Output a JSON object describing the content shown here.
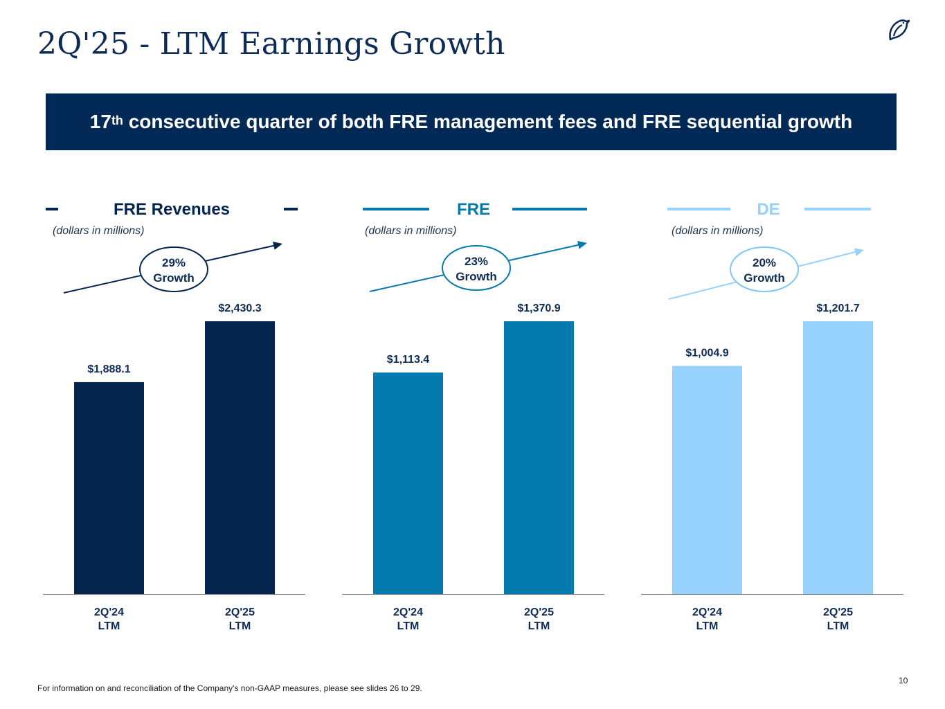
{
  "slide": {
    "title": "2Q'25 - LTM Earnings Growth",
    "banner": {
      "number": "17",
      "superscript": "th",
      "text": " consecutive quarter of both FRE management fees and FRE sequential growth"
    },
    "footnote": "For information on and reconciliation of the Company's non-GAAP measures, please see slides 26 to 29.",
    "page_number": "10"
  },
  "colors": {
    "navy": "#03254e",
    "mid_blue": "#0479ae",
    "light_blue": "#96d2fb",
    "banner_bg": "#032a56"
  },
  "chart_data": [
    {
      "type": "bar",
      "title": "FRE Revenues",
      "subtitle": "(dollars in millions)",
      "categories": [
        "2Q'24\nLTM",
        "2Q'25\nLTM"
      ],
      "values": [
        1888.1,
        2430.3
      ],
      "value_labels": [
        "$1,888.1",
        "$2,430.3"
      ],
      "growth_line1": "29%",
      "growth_line2": "Growth",
      "color": "#03254e",
      "ylim": [
        0,
        2430.3
      ],
      "xlabel": "",
      "ylabel": ""
    },
    {
      "type": "bar",
      "title": "FRE",
      "subtitle": "(dollars in millions)",
      "categories": [
        "2Q'24\nLTM",
        "2Q'25\nLTM"
      ],
      "values": [
        1113.4,
        1370.9
      ],
      "value_labels": [
        "$1,113.4",
        "$1,370.9"
      ],
      "growth_line1": "23%",
      "growth_line2": "Growth",
      "color": "#0479ae",
      "ylim": [
        0,
        1370.9
      ],
      "xlabel": "",
      "ylabel": ""
    },
    {
      "type": "bar",
      "title": "DE",
      "subtitle": "(dollars in millions)",
      "categories": [
        "2Q'24\nLTM",
        "2Q'25\nLTM"
      ],
      "values": [
        1004.9,
        1201.7
      ],
      "value_labels": [
        "$1,004.9",
        "$1,201.7"
      ],
      "growth_line1": "20%",
      "growth_line2": "Growth",
      "color": "#96d2fb",
      "ylim": [
        0,
        1201.7
      ],
      "xlabel": "",
      "ylabel": ""
    }
  ]
}
